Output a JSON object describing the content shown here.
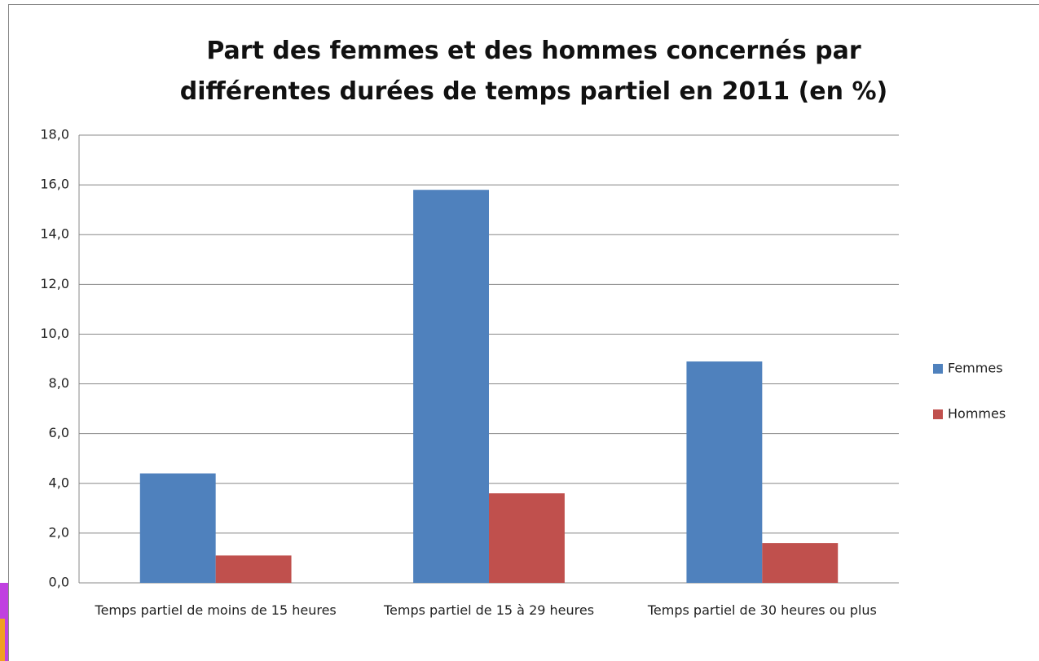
{
  "chart_data": {
    "type": "bar",
    "title": "Part des femmes et des hommes concernés par différentes durées de temps partiel en 2011 (en %)",
    "categories": [
      "Temps partiel de moins de 15 heures",
      "Temps partiel de 15 à 29 heures",
      "Temps partiel de 30 heures ou plus"
    ],
    "series": [
      {
        "name": "Femmes",
        "color": "#4f81bd",
        "values": [
          4.4,
          15.8,
          8.9
        ]
      },
      {
        "name": "Hommes",
        "color": "#c0504d",
        "values": [
          1.1,
          3.6,
          1.6
        ]
      }
    ],
    "ylim": [
      0,
      18
    ],
    "yticks": [
      {
        "value": 0,
        "label": "0,0"
      },
      {
        "value": 2,
        "label": "2,0"
      },
      {
        "value": 4,
        "label": "4,0"
      },
      {
        "value": 6,
        "label": "6,0"
      },
      {
        "value": 8,
        "label": "8,0"
      },
      {
        "value": 10,
        "label": "10,0"
      },
      {
        "value": 12,
        "label": "12,0"
      },
      {
        "value": 14,
        "label": "14,0"
      },
      {
        "value": 16,
        "label": "16,0"
      },
      {
        "value": 18,
        "label": "18,0"
      }
    ],
    "grid": true,
    "legend": "right"
  }
}
